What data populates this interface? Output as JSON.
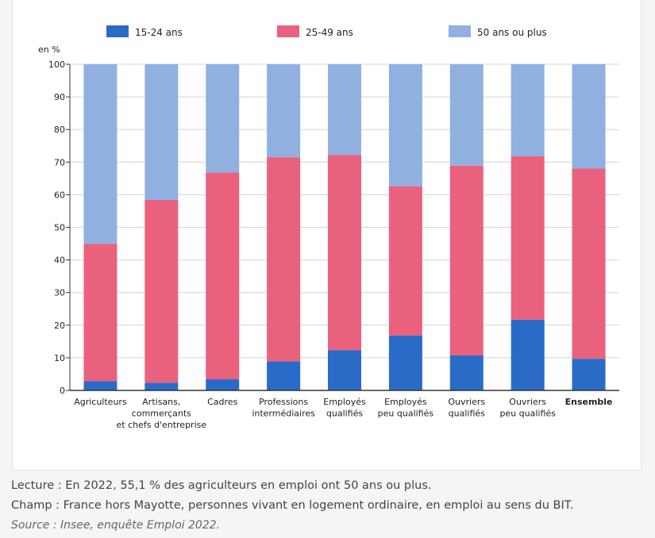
{
  "chart_data": {
    "type": "bar",
    "stacked": true,
    "ylabel": "en %",
    "ylim": [
      0,
      100
    ],
    "yticks": [
      0,
      10,
      20,
      30,
      40,
      50,
      60,
      70,
      80,
      90,
      100
    ],
    "grid": true,
    "legend_position": "top",
    "categories": [
      [
        "Agriculteurs"
      ],
      [
        "Artisans,",
        "commerçants",
        "et chefs d'entreprise"
      ],
      [
        "Cadres"
      ],
      [
        "Professions",
        "intermédiaires"
      ],
      [
        "Employés",
        "qualifiés"
      ],
      [
        "Employés",
        "peu qualifiés"
      ],
      [
        "Ouvriers",
        "qualifiés"
      ],
      [
        "Ouvriers",
        "peu qualifiés"
      ],
      [
        "Ensemble"
      ]
    ],
    "bold_categories": [
      8
    ],
    "series": [
      {
        "name": "15-24 ans",
        "color": "#2a6bc8",
        "values": [
          2.8,
          2.3,
          3.4,
          8.9,
          12.3,
          16.8,
          10.7,
          21.7,
          9.7
        ]
      },
      {
        "name": "25-49 ans",
        "color": "#ea617e",
        "values": [
          42.1,
          56.1,
          63.4,
          62.6,
          59.9,
          45.8,
          58.2,
          50.1,
          58.3
        ]
      },
      {
        "name": "50 ans ou plus",
        "color": "#90b0e0",
        "values": [
          55.1,
          41.6,
          33.2,
          28.5,
          27.8,
          37.4,
          31.1,
          28.2,
          32.0
        ]
      }
    ]
  },
  "notes": {
    "lecture": "Lecture : En 2022, 55,1 % des agriculteurs en emploi ont 50 ans ou plus.",
    "champ": "Champ : France hors Mayotte, personnes vivant en logement ordinaire, en emploi au sens du BIT.",
    "source": "Source : Insee, enquête Emploi 2022."
  }
}
